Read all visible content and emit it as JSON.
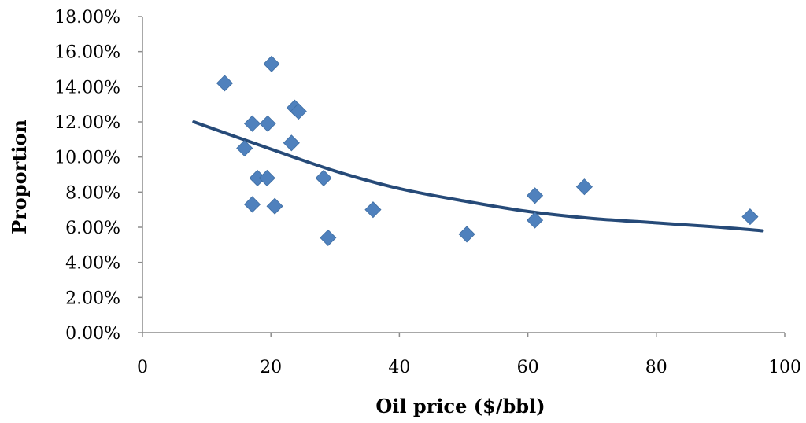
{
  "chart_data": {
    "type": "scatter",
    "title": "",
    "xlabel": "Oil price ($/bbl)",
    "ylabel": "Proportion",
    "xlim": [
      0,
      100
    ],
    "ylim": [
      0,
      0.18
    ],
    "x_ticks": [
      0,
      20,
      40,
      60,
      80,
      100
    ],
    "x_tick_labels": [
      "0",
      "20",
      "40",
      "60",
      "80",
      "100"
    ],
    "y_ticks": [
      0,
      0.02,
      0.04,
      0.06,
      0.08,
      0.1,
      0.12,
      0.14,
      0.16,
      0.18
    ],
    "y_tick_labels": [
      "0.00%",
      "2.00%",
      "4.00%",
      "6.00%",
      "8.00%",
      "10.00%",
      "12.00%",
      "14.00%",
      "16.00%",
      "18.00%"
    ],
    "grid": false,
    "legend": "none",
    "marker": "diamond",
    "colors": {
      "points": "#4f81bd",
      "trend": "#264a78",
      "axis": "#8c8c8c"
    },
    "points": [
      {
        "x": 12.8,
        "y": 0.142
      },
      {
        "x": 20.1,
        "y": 0.153
      },
      {
        "x": 23.7,
        "y": 0.128
      },
      {
        "x": 24.3,
        "y": 0.126
      },
      {
        "x": 17.1,
        "y": 0.119
      },
      {
        "x": 19.5,
        "y": 0.119
      },
      {
        "x": 23.2,
        "y": 0.108
      },
      {
        "x": 15.9,
        "y": 0.105
      },
      {
        "x": 17.9,
        "y": 0.088
      },
      {
        "x": 19.4,
        "y": 0.088
      },
      {
        "x": 28.2,
        "y": 0.088
      },
      {
        "x": 17.1,
        "y": 0.073
      },
      {
        "x": 20.6,
        "y": 0.072
      },
      {
        "x": 35.9,
        "y": 0.07
      },
      {
        "x": 28.9,
        "y": 0.054
      },
      {
        "x": 50.5,
        "y": 0.056
      },
      {
        "x": 61.1,
        "y": 0.078
      },
      {
        "x": 61.1,
        "y": 0.064
      },
      {
        "x": 68.8,
        "y": 0.083
      },
      {
        "x": 94.6,
        "y": 0.066
      }
    ],
    "trendline": {
      "type": "fit",
      "points": [
        {
          "x": 8,
          "y": 0.12
        },
        {
          "x": 20,
          "y": 0.1045
        },
        {
          "x": 30,
          "y": 0.092
        },
        {
          "x": 40,
          "y": 0.082
        },
        {
          "x": 50,
          "y": 0.075
        },
        {
          "x": 60,
          "y": 0.069
        },
        {
          "x": 70,
          "y": 0.065
        },
        {
          "x": 80,
          "y": 0.0625
        },
        {
          "x": 90,
          "y": 0.06
        },
        {
          "x": 96.5,
          "y": 0.058
        }
      ]
    }
  }
}
